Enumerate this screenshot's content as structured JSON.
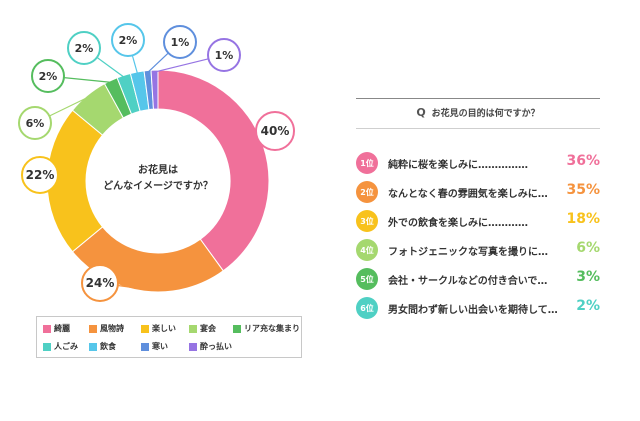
{
  "chart_data": {
    "type": "pie",
    "center_label": [
      "お花見は",
      "どんなイメージですか？"
    ],
    "categories": [
      "綺麗",
      "風物詩",
      "楽しい",
      "宴会",
      "リア充な集まり",
      "人ごみ",
      "飲食",
      "寒い",
      "酔っ払い"
    ],
    "values": [
      40,
      24,
      22,
      6,
      2,
      2,
      2,
      1,
      1
    ],
    "data_labels": [
      "40%",
      "24%",
      "22%",
      "6%",
      "2%",
      "2%",
      "2%",
      "1%",
      "1%"
    ],
    "colors": [
      "#f0709a",
      "#f5933e",
      "#f8c21c",
      "#a5d86f",
      "#55bd5e",
      "#4fd0c4",
      "#56c6ea",
      "#5f8fdd",
      "#9674e3"
    ],
    "legend_position": "bottom"
  },
  "survey": {
    "question_mark": "Q",
    "question": "お花見の目的は何ですか？",
    "items": [
      {
        "rank": "1位",
        "label": "純粋に桜を楽しみに……………",
        "value": "36%",
        "color": "#f0709a"
      },
      {
        "rank": "2位",
        "label": "なんとなく春の雰囲気を楽しみに…",
        "value": "35%",
        "color": "#f5933e"
      },
      {
        "rank": "3位",
        "label": "外での飲食を楽しみに…………",
        "value": "18%",
        "color": "#f8c21c"
      },
      {
        "rank": "4位",
        "label": "フォトジェニックな写真を撮りに…",
        "value": "6%",
        "color": "#a5d86f"
      },
      {
        "rank": "5位",
        "label": "会社・サークルなどの付き合いで…",
        "value": "3%",
        "color": "#55bd5e"
      },
      {
        "rank": "6位",
        "label": "男女問わず新しい出会いを期待して…",
        "value": "2%",
        "color": "#4fd0c4"
      }
    ]
  }
}
